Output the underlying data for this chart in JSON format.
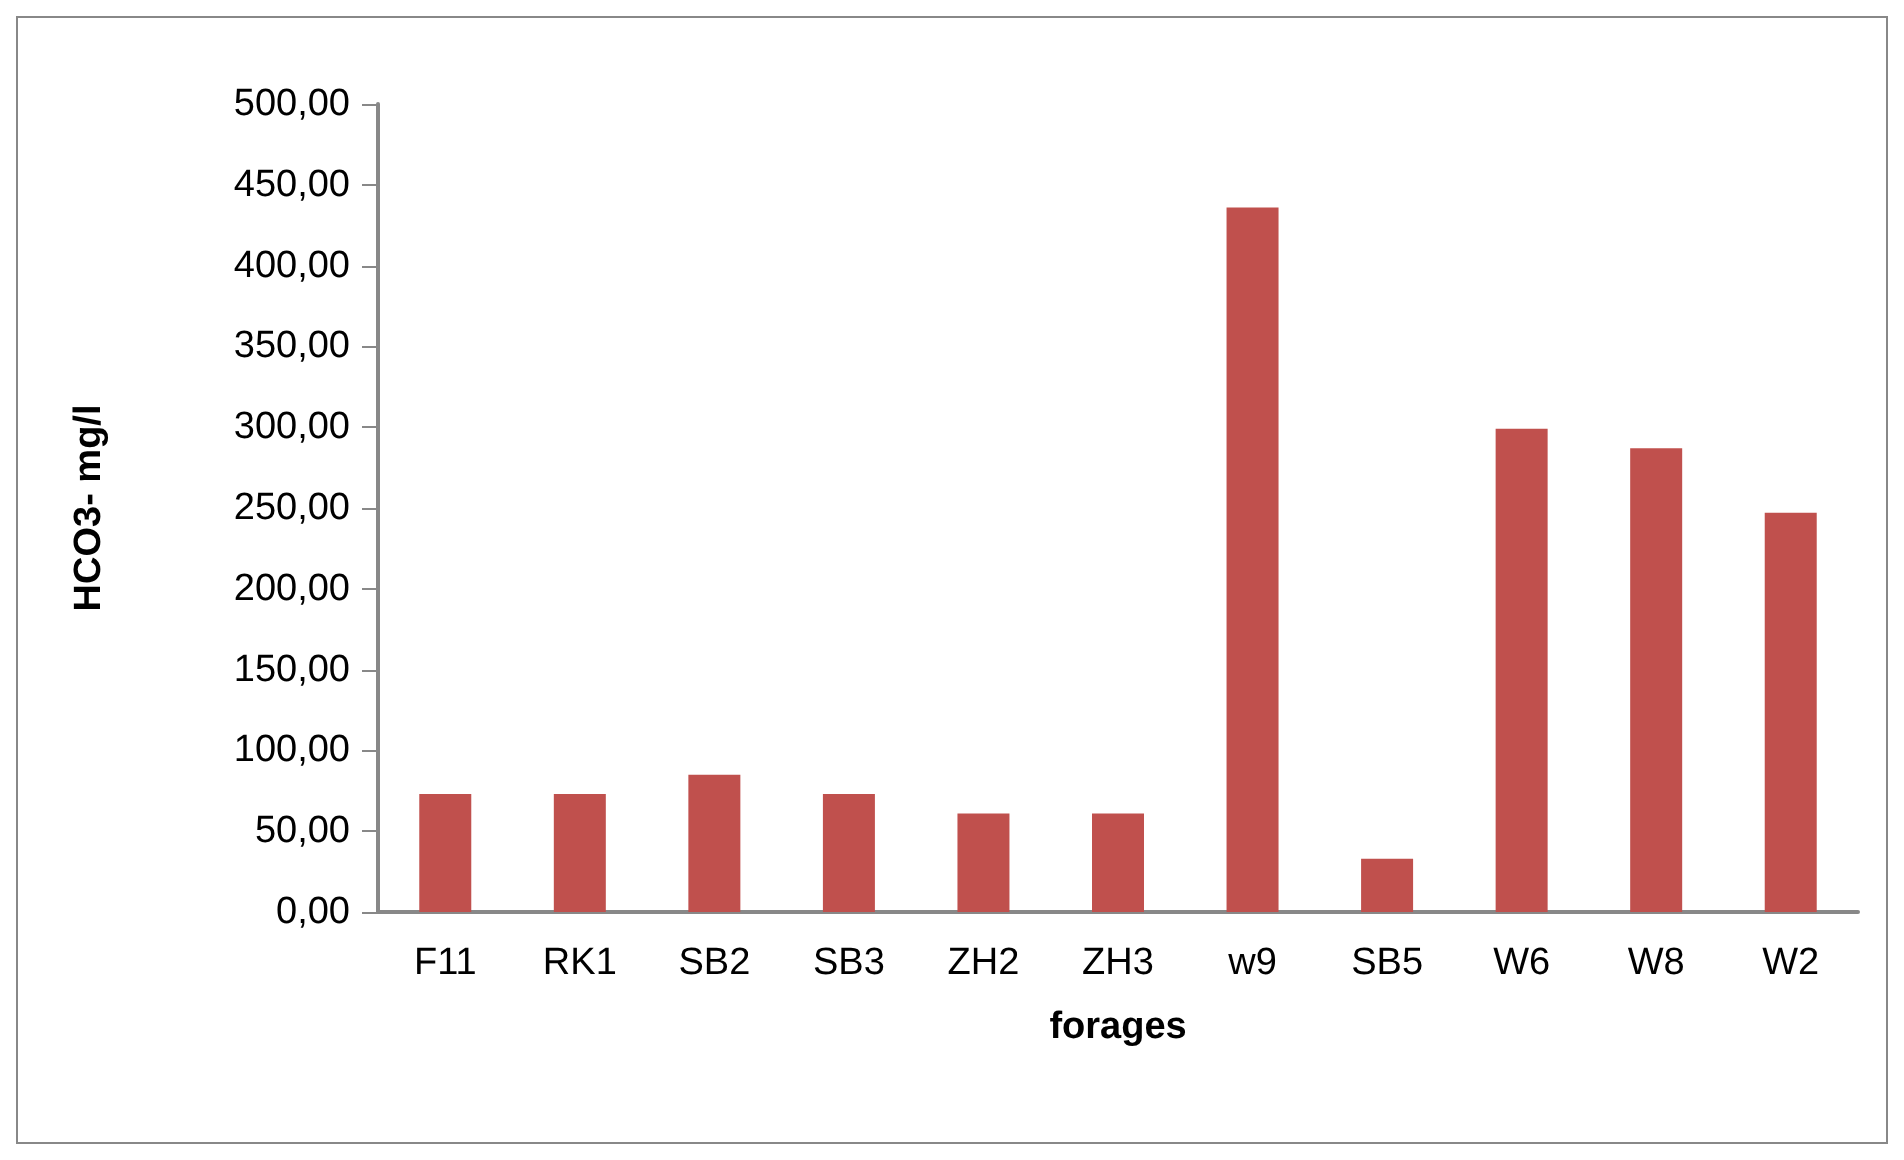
{
  "chart_data": {
    "type": "bar",
    "xlabel": "forages",
    "ylabel": "HCO3- mg/l",
    "categories": [
      "F11",
      "RK1",
      "SB2",
      "SB3",
      "ZH2",
      "ZH3",
      "w9",
      "SB5",
      "W6",
      "W8",
      "W2"
    ],
    "values": [
      73,
      73,
      85,
      73,
      61,
      61,
      436,
      33,
      299,
      287,
      247
    ],
    "color": "#c0504d",
    "ylim": [
      0,
      500
    ],
    "yticks": [
      {
        "value": 0,
        "label": "0,00"
      },
      {
        "value": 50,
        "label": "50,00"
      },
      {
        "value": 100,
        "label": "100,00"
      },
      {
        "value": 150,
        "label": "150,00"
      },
      {
        "value": 200,
        "label": "200,00"
      },
      {
        "value": 250,
        "label": "250,00"
      },
      {
        "value": 300,
        "label": "300,00"
      },
      {
        "value": 350,
        "label": "350,00"
      },
      {
        "value": 400,
        "label": "400,00"
      },
      {
        "value": 450,
        "label": "450,00"
      },
      {
        "value": 500,
        "label": "500,00"
      }
    ],
    "data_labels": false
  }
}
